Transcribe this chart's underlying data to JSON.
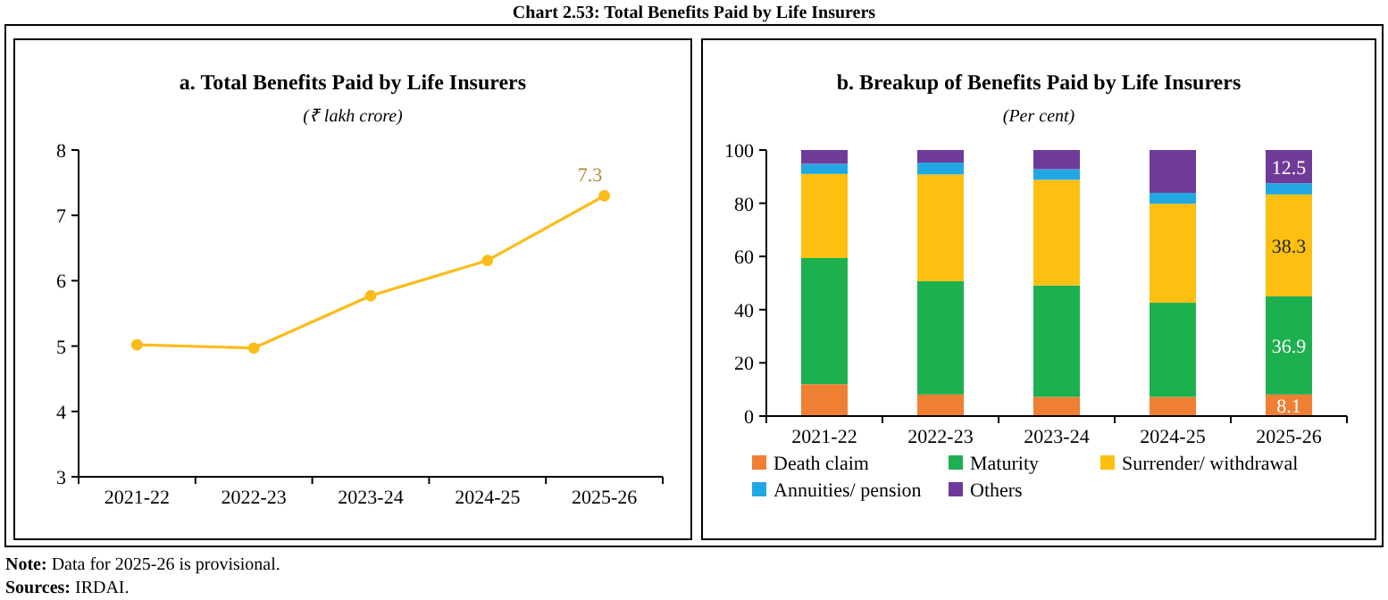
{
  "chart_data": [
    {
      "type": "line",
      "title": "a. Total Benefits Paid by Life Insurers",
      "subtitle": "(₹ lakh crore)",
      "categories": [
        "2021-22",
        "2022-23",
        "2023-24",
        "2024-25",
        "2025-26"
      ],
      "series": [
        {
          "color": "#fbbc1a",
          "values": [
            5.02,
            4.97,
            5.77,
            6.31,
            7.3
          ],
          "value_labels": [
            null,
            null,
            null,
            null,
            "7.3"
          ]
        }
      ],
      "ylim": [
        3,
        8
      ],
      "yticks": [
        3,
        4,
        5,
        6,
        7,
        8
      ],
      "grid": false,
      "legend": false,
      "marker": "circle",
      "annotations": [
        "Chart 2.53: Total Benefits Paid by Life Insurers",
        "Note: Data for 2025-26 is provisional.",
        "Sources: IRDAI."
      ]
    },
    {
      "type": "bar",
      "stacked": true,
      "title": "b. Breakup of Benefits Paid by Life Insurers",
      "subtitle": "(Per cent)",
      "categories": [
        "2021-22",
        "2022-23",
        "2023-24",
        "2024-25",
        "2025-26"
      ],
      "series": [
        {
          "name": "Death claim",
          "color": "#ef7f33",
          "values": [
            12,
            8.1,
            7.2,
            7.2,
            8.1
          ],
          "value_labels": [
            null,
            null,
            null,
            null,
            "8.1"
          ]
        },
        {
          "name": "Maturity",
          "color": "#1db04f",
          "values": [
            47.4,
            42.6,
            41.9,
            35.4,
            36.9
          ],
          "value_labels": [
            null,
            null,
            null,
            null,
            "36.9"
          ]
        },
        {
          "name": "Surrender/ withdrawal",
          "color": "#fdc010",
          "values": [
            31.6,
            40.1,
            39.7,
            37.2,
            38.3
          ],
          "value_labels": [
            null,
            null,
            null,
            null,
            "38.3"
          ]
        },
        {
          "name": "Annuities/ pension",
          "color": "#21a8e3",
          "values": [
            3.8,
            4.5,
            4.0,
            4.1,
            4.2
          ]
        },
        {
          "name": "Others",
          "color": "#6f3a98",
          "values": [
            5.2,
            4.7,
            7.2,
            16.1,
            12.5
          ],
          "value_labels": [
            null,
            null,
            null,
            null,
            "12.5"
          ]
        }
      ],
      "ylim": [
        0,
        100
      ],
      "yticks": [
        0,
        20,
        40,
        60,
        80,
        100
      ],
      "grid": false,
      "legend": "bottom"
    }
  ]
}
